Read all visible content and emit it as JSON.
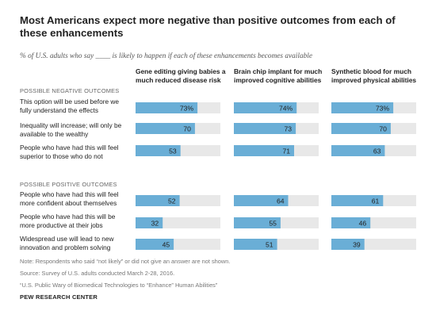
{
  "title": "Most Americans expect more negative than positive outcomes from each of these enhancements",
  "subtitle": "% of U.S. adults who say ____ is likely to happen if each of these enhancements becomes available",
  "sections": {
    "negative": "POSSIBLE NEGATIVE OUTCOMES",
    "positive": "POSSIBLE POSITIVE OUTCOMES"
  },
  "columns": [
    "Gene editing giving babies a much reduced disease risk",
    "Brain chip implant for much improved cognitive abilities",
    "Synthetic blood for much improved physical abilities"
  ],
  "rows": [
    "This option will be used before we fully understand the effects",
    "Inequality will increase; will only be available to the wealthy",
    "People who have had this will feel superior to those who do not",
    "People who have had this will feel more confident about themselves",
    "People who have had this will be more productive at their jobs",
    "Widespread use will lead to new innovation and problem solving"
  ],
  "notes": {
    "note": "Note: Respondents who said “not likely” or did not give an answer are not shown.",
    "source": "Source: Survey of U.S. adults conducted March 2-28, 2016.",
    "report": "“U.S. Public Wary of Biomedical Technologies to “Enhance” Human Abilities”",
    "org": "PEW RESEARCH CENTER"
  },
  "chart_data": {
    "type": "bar",
    "title": "Most Americans expect more negative than positive outcomes from each of these enhancements",
    "orientation": "horizontal",
    "layout": "small-multiples",
    "xlim": [
      0,
      100
    ],
    "grid": false,
    "bar_color": "#6aaed6",
    "track_color": "#e8e8e8",
    "categories": [
      "This option will be used before we fully understand the effects",
      "Inequality will increase; will only be available to the wealthy",
      "People who have had this will feel superior to those who do not",
      "People who have had this will feel more confident about themselves",
      "People who have had this will be more productive at their jobs",
      "Widespread use will lead to new innovation and problem solving"
    ],
    "series": [
      {
        "name": "Gene editing giving babies a much reduced disease risk",
        "values": [
          73,
          70,
          53,
          52,
          32,
          45
        ]
      },
      {
        "name": "Brain chip implant for much improved cognitive abilities",
        "values": [
          74,
          73,
          71,
          64,
          55,
          51
        ]
      },
      {
        "name": "Synthetic blood for much improved physical abilities",
        "values": [
          73,
          70,
          63,
          61,
          46,
          39
        ]
      }
    ],
    "value_labels": [
      [
        "73%",
        "70",
        "53",
        "52",
        "32",
        "45"
      ],
      [
        "74%",
        "73",
        "71",
        "64",
        "55",
        "51"
      ],
      [
        "73%",
        "70",
        "63",
        "61",
        "46",
        "39"
      ]
    ]
  }
}
